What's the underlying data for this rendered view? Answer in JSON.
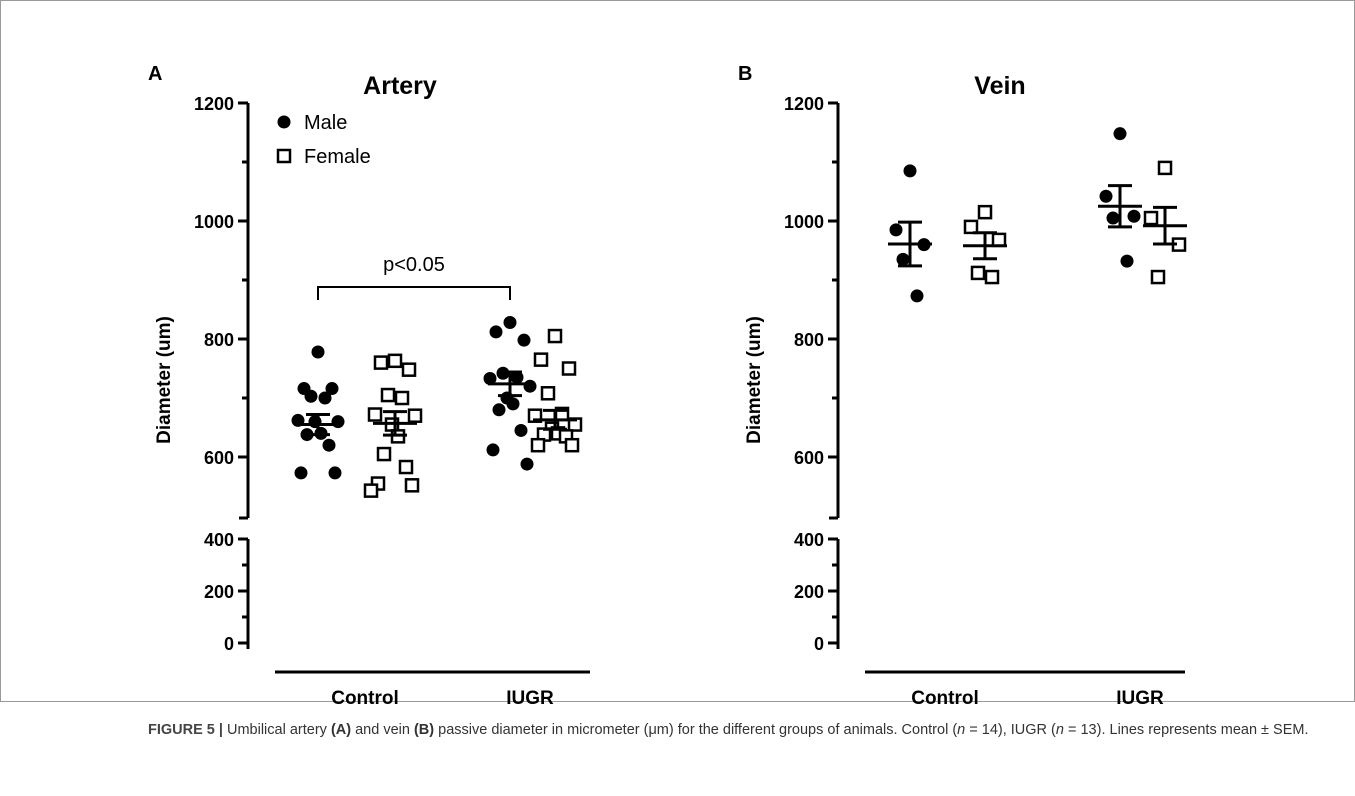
{
  "chart_data": [
    {
      "type": "dot-plot",
      "panel_label": "A",
      "title": "Artery",
      "y_label": "Diameter (um)",
      "categories": [
        "Control",
        "IUGR"
      ],
      "ylim": [
        500,
        1200
      ],
      "yticks": [
        600,
        800,
        1000,
        1200
      ],
      "yticks_minor": [
        700,
        900,
        1100
      ],
      "ylim_low": [
        0,
        400
      ],
      "yticks_low": [
        0,
        200,
        400
      ],
      "yticks_low_minor": [
        100,
        300
      ],
      "legend": true,
      "annotation": "p<0.05",
      "series": [
        {
          "name": "Male",
          "marker": "circle",
          "color": "#000000",
          "values": [
            [
              778,
              716,
              716,
              703,
              700,
              662,
              660,
              660,
              640,
              638,
              620,
              573,
              573
            ],
            [
              828,
              812,
              798,
              742,
              735,
              733,
              720,
              700,
              690,
              680,
              645,
              612,
              588
            ]
          ],
          "mean": [
            655,
            724
          ],
          "sem": [
            17,
            20
          ]
        },
        {
          "name": "Female",
          "marker": "square",
          "color": "#000000",
          "values": [
            [
              763,
              760,
              748,
              705,
              700,
              672,
              670,
              655,
              635,
              605,
              583,
              555,
              552,
              543
            ],
            [
              805,
              765,
              750,
              708,
              673,
              670,
              655,
              648,
              640,
              638,
              635,
              620,
              620
            ]
          ],
          "mean": [
            657,
            663
          ],
          "sem": [
            20,
            16
          ]
        }
      ]
    },
    {
      "type": "dot-plot",
      "panel_label": "B",
      "title": "Vein",
      "y_label": "Diameter (um)",
      "categories": [
        "Control",
        "IUGR"
      ],
      "ylim": [
        500,
        1200
      ],
      "yticks": [
        600,
        800,
        1000,
        1200
      ],
      "yticks_minor": [
        700,
        900,
        1100
      ],
      "ylim_low": [
        0,
        400
      ],
      "yticks_low": [
        0,
        200,
        400
      ],
      "yticks_low_minor": [
        100,
        300
      ],
      "legend": false,
      "series": [
        {
          "marker": "circle",
          "color": "#000000",
          "values": [
            [
              1085,
              985,
              960,
              935,
              873
            ],
            [
              1148,
              1042,
              1008,
              1005,
              932
            ]
          ],
          "mean": [
            961,
            1025
          ],
          "sem": [
            37,
            35
          ]
        },
        {
          "marker": "square",
          "color": "#000000",
          "values": [
            [
              1015,
              990,
              968,
              912,
              905
            ],
            [
              1090,
              1005,
              960,
              905
            ]
          ],
          "mean": [
            958,
            992
          ],
          "sem": [
            22,
            31
          ]
        }
      ]
    }
  ],
  "caption": {
    "parts": [
      "FIGURE 5 |",
      " Umbilical artery ",
      "(A)",
      " and vein ",
      "(B)",
      " passive diameter in micrometer (μm) for the different groups of animals. Control (",
      "n",
      " = 14), IUGR (",
      "n",
      " = 13). Lines represents mean ± SEM."
    ]
  }
}
